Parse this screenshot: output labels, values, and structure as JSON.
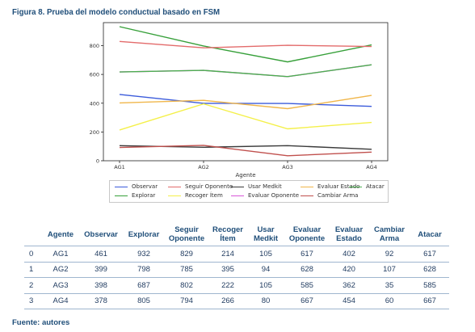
{
  "figure_title": "Figura 8. Prueba del modelo conductual basado en FSM",
  "source": "Fuente: autores",
  "chart_data": {
    "type": "line",
    "categories": [
      "AG1",
      "AG2",
      "AG3",
      "AG4"
    ],
    "xlabel": "Agente",
    "ylabel": "",
    "ylim": [
      0,
      960
    ],
    "yticks": [
      0,
      200,
      400,
      600,
      800
    ],
    "legend_position": "below",
    "series": [
      {
        "name": "Observar",
        "color": "#3b5bdb",
        "values": [
          461,
          399,
          398,
          378
        ]
      },
      {
        "name": "Explorar",
        "color": "#37a03a",
        "values": [
          932,
          798,
          687,
          805
        ]
      },
      {
        "name": "Seguir Oponente",
        "color": "#e36b6b",
        "values": [
          829,
          785,
          802,
          794
        ]
      },
      {
        "name": "Recoger Ítem",
        "color": "#f4f04a",
        "values": [
          214,
          395,
          222,
          266
        ]
      },
      {
        "name": "Usar Medkit",
        "color": "#3a3a3a",
        "values": [
          105,
          94,
          105,
          80
        ]
      },
      {
        "name": "Evaluar Oponente",
        "color": "#d957d9",
        "values": [
          617,
          628,
          585,
          667
        ]
      },
      {
        "name": "Evaluar Estado",
        "color": "#f0b64a",
        "values": [
          402,
          420,
          362,
          454
        ]
      },
      {
        "name": "Cambiar Arma",
        "color": "#c0504d",
        "values": [
          92,
          107,
          35,
          60
        ]
      },
      {
        "name": "Atacar",
        "color": "#4caf50",
        "values": [
          617,
          628,
          585,
          667
        ]
      }
    ]
  },
  "table": {
    "headers": [
      "",
      "Agente",
      "Observar",
      "Explorar",
      "Seguir Oponente",
      "Recoger Ítem",
      "Usar Medkit",
      "Evaluar Oponente",
      "Evaluar Estado",
      "Cambiar Arma",
      "Atacar"
    ],
    "rows": [
      [
        "0",
        "AG1",
        "461",
        "932",
        "829",
        "214",
        "105",
        "617",
        "402",
        "92",
        "617"
      ],
      [
        "1",
        "AG2",
        "399",
        "798",
        "785",
        "395",
        "94",
        "628",
        "420",
        "107",
        "628"
      ],
      [
        "2",
        "AG3",
        "398",
        "687",
        "802",
        "222",
        "105",
        "585",
        "362",
        "35",
        "585"
      ],
      [
        "3",
        "AG4",
        "378",
        "805",
        "794",
        "266",
        "80",
        "667",
        "454",
        "60",
        "667"
      ]
    ]
  }
}
